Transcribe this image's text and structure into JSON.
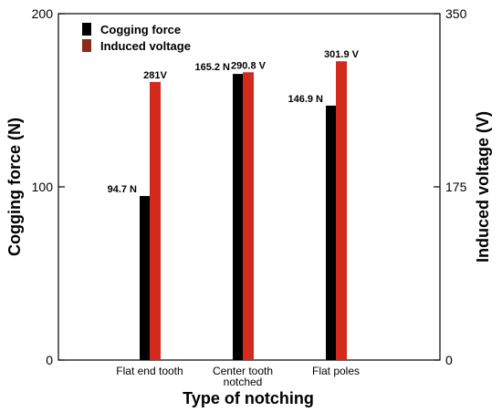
{
  "chart_data": {
    "type": "bar",
    "categories": [
      "Flat end tooth",
      "Center tooth\nnotched",
      "Flat poles"
    ],
    "series": [
      {
        "name": "Cogging force",
        "axis": "left",
        "color": "#000000",
        "values": [
          94.7,
          165.2,
          146.9
        ],
        "labels": [
          "94.7 N",
          "165.2 N",
          "146.9 N"
        ]
      },
      {
        "name": "Induced voltage",
        "axis": "right",
        "color": "#d42a1e",
        "values": [
          281,
          290.8,
          301.9
        ],
        "labels": [
          "281V",
          "290.8 V",
          "301.9 V"
        ]
      }
    ],
    "xlabel": "Type of notching",
    "ylabel": "Cogging force (N)",
    "y2label": "Induced voltage (V)",
    "ylim": [
      0,
      200
    ],
    "y2lim": [
      0,
      350
    ],
    "yticks": [
      "0",
      "100",
      "200"
    ],
    "y2ticks": [
      "0",
      "175",
      "350"
    ],
    "legend_position": "top-left",
    "grid": false
  }
}
